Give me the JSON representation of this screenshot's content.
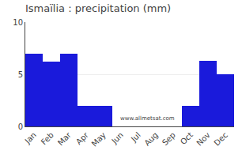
{
  "chart_data": {
    "type": "bar",
    "title": "Ismaïlia : precipitation (mm)",
    "categories": [
      "Jan",
      "Feb",
      "Mar",
      "Apr",
      "May",
      "Jun",
      "Jul",
      "Aug",
      "Sep",
      "Oct",
      "Nov",
      "Dec"
    ],
    "values": [
      7.0,
      6.2,
      7.0,
      2.0,
      2.0,
      0.0,
      0.0,
      0.0,
      0.0,
      2.0,
      6.3,
      5.0
    ],
    "color": "#1a1adb",
    "ylim": [
      0,
      10
    ],
    "yticks": [
      0,
      5,
      10
    ],
    "grid": true,
    "annotations": [
      "www.allmetsat.com"
    ]
  }
}
